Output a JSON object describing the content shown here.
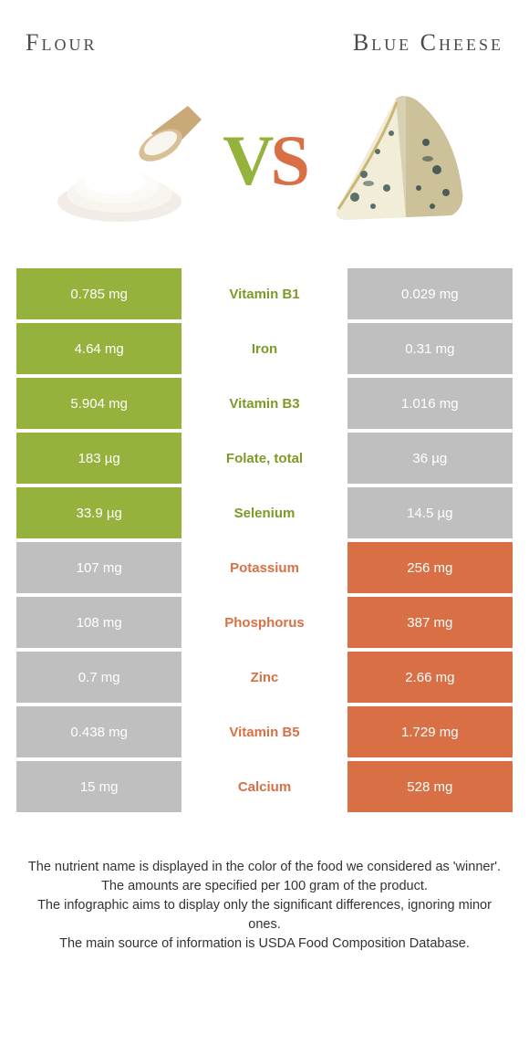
{
  "colors": {
    "green": "#94b23c",
    "orange": "#d96f45",
    "grey": "#bfbfbf",
    "winner_green_text": "#7c9a26",
    "winner_orange_text": "#d96f45"
  },
  "items": {
    "left": "Flour",
    "right": "Blue Cheese"
  },
  "rows": [
    {
      "nutrient": "Vitamin B1",
      "left": "0.785 mg",
      "right": "0.029 mg",
      "winner": "left"
    },
    {
      "nutrient": "Iron",
      "left": "4.64 mg",
      "right": "0.31 mg",
      "winner": "left"
    },
    {
      "nutrient": "Vitamin B3",
      "left": "5.904 mg",
      "right": "1.016 mg",
      "winner": "left"
    },
    {
      "nutrient": "Folate, total",
      "left": "183 µg",
      "right": "36 µg",
      "winner": "left"
    },
    {
      "nutrient": "Selenium",
      "left": "33.9 µg",
      "right": "14.5 µg",
      "winner": "left"
    },
    {
      "nutrient": "Potassium",
      "left": "107 mg",
      "right": "256 mg",
      "winner": "right"
    },
    {
      "nutrient": "Phosphorus",
      "left": "108 mg",
      "right": "387 mg",
      "winner": "right"
    },
    {
      "nutrient": "Zinc",
      "left": "0.7 mg",
      "right": "2.66 mg",
      "winner": "right"
    },
    {
      "nutrient": "Vitamin B5",
      "left": "0.438 mg",
      "right": "1.729 mg",
      "winner": "right"
    },
    {
      "nutrient": "Calcium",
      "left": "15 mg",
      "right": "528 mg",
      "winner": "right"
    }
  ],
  "notes": [
    "The nutrient name is displayed in the color of the food we considered as 'winner'.",
    "The amounts are specified per 100 gram of the product.",
    "The infographic aims to display only the significant differences, ignoring minor ones.",
    "The main source of information is USDA Food Composition Database."
  ]
}
